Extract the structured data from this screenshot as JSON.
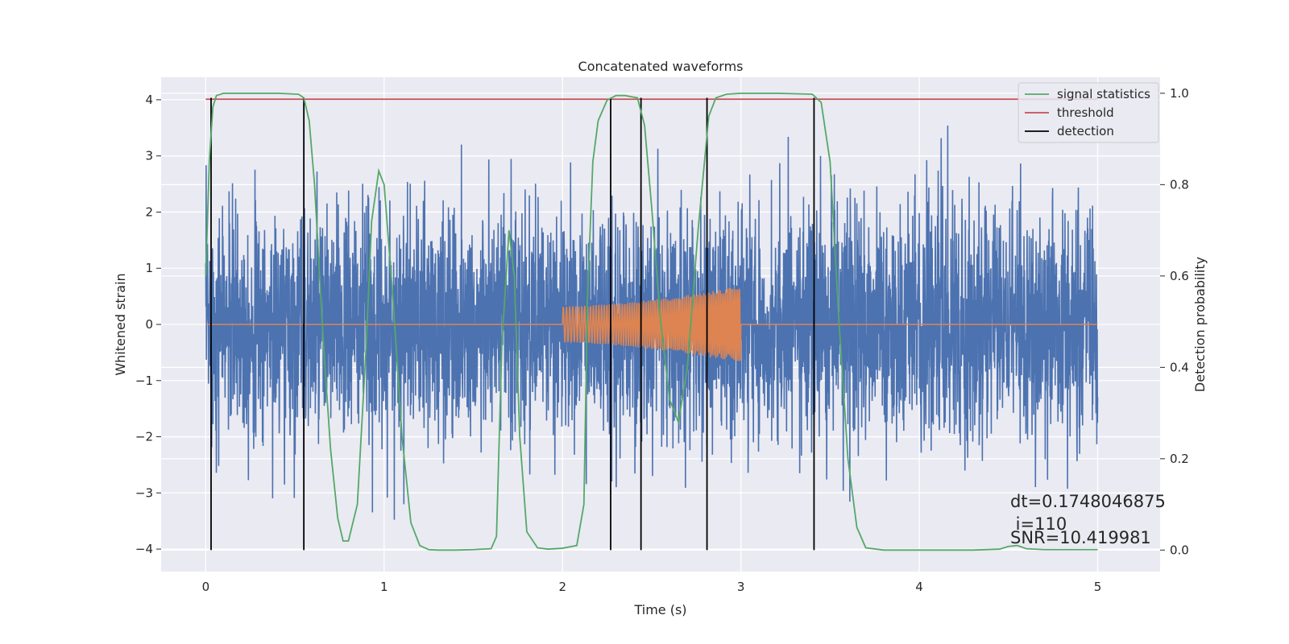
{
  "chart_data": {
    "type": "line",
    "title": "Concatenated waveforms",
    "xlabel": "Time (s)",
    "ylabel_left": "Whitened strain",
    "ylabel_right": "Detection probability",
    "xlim": [
      -0.25,
      5.35
    ],
    "ylim_left": [
      -4.4,
      4.4
    ],
    "ylim_right": [
      -0.047,
      1.035
    ],
    "x_ticks": [
      0,
      1,
      2,
      3,
      4,
      5
    ],
    "y_ticks_left": [
      -4,
      -3,
      -2,
      -1,
      0,
      1,
      2,
      3,
      4
    ],
    "y_ticks_right": [
      0.0,
      0.2,
      0.4,
      0.6,
      0.8,
      1.0
    ],
    "grid": true,
    "legend_position": "upper-right",
    "colors": {
      "strain": "#4c72b0",
      "injection": "#dd8452",
      "signal_statistics": "#55a868",
      "threshold": "#c44e52",
      "detection": "#000000",
      "plot_bg": "#eaeaf2",
      "grid": "#ffffff"
    },
    "series": [
      {
        "name": "signal statistics",
        "axis": "right",
        "x": [
          0.0,
          0.02,
          0.04,
          0.06,
          0.1,
          0.2,
          0.4,
          0.52,
          0.55,
          0.58,
          0.61,
          0.66,
          0.7,
          0.74,
          0.77,
          0.8,
          0.85,
          0.9,
          0.93,
          0.97,
          1.0,
          1.05,
          1.1,
          1.15,
          1.2,
          1.25,
          1.3,
          1.4,
          1.5,
          1.6,
          1.63,
          1.66,
          1.7,
          1.73,
          1.76,
          1.8,
          1.86,
          1.92,
          2.0,
          2.08,
          2.12,
          2.14,
          2.17,
          2.2,
          2.25,
          2.3,
          2.35,
          2.42,
          2.46,
          2.5,
          2.55,
          2.6,
          2.65,
          2.7,
          2.76,
          2.82,
          2.86,
          2.92,
          3.0,
          3.2,
          3.4,
          3.45,
          3.5,
          3.55,
          3.6,
          3.65,
          3.7,
          3.8,
          4.0,
          4.3,
          4.45,
          4.5,
          4.55,
          4.6,
          4.7,
          5.0
        ],
        "y": [
          0.6,
          0.85,
          0.97,
          0.995,
          1.0,
          1.0,
          1.0,
          0.998,
          0.99,
          0.94,
          0.8,
          0.45,
          0.22,
          0.07,
          0.02,
          0.02,
          0.1,
          0.45,
          0.72,
          0.83,
          0.8,
          0.55,
          0.25,
          0.06,
          0.01,
          0.001,
          0.0,
          0.0,
          0.001,
          0.003,
          0.03,
          0.45,
          0.7,
          0.6,
          0.25,
          0.04,
          0.005,
          0.002,
          0.004,
          0.01,
          0.1,
          0.55,
          0.85,
          0.94,
          0.985,
          0.995,
          0.995,
          0.99,
          0.93,
          0.75,
          0.5,
          0.33,
          0.28,
          0.4,
          0.7,
          0.95,
          0.99,
          0.998,
          1.0,
          1.0,
          0.998,
          0.98,
          0.85,
          0.5,
          0.2,
          0.05,
          0.005,
          0.0,
          0.0,
          0.0,
          0.002,
          0.008,
          0.01,
          0.003,
          0.001,
          0.001
        ]
      },
      {
        "name": "threshold",
        "axis": "right",
        "y": 0.987,
        "x_range": [
          0,
          5
        ]
      },
      {
        "name": "detection",
        "axis": "right",
        "x": [
          0.03,
          0.55,
          2.27,
          2.44,
          2.81,
          3.41
        ],
        "y_range": [
          0.0,
          0.99
        ]
      }
    ],
    "legend": [
      "signal statistics",
      "threshold",
      "detection"
    ],
    "annotations": {
      "dt": "dt=0.1748046875",
      "i": " i=110",
      "snr": "SNR=10.419981"
    }
  }
}
